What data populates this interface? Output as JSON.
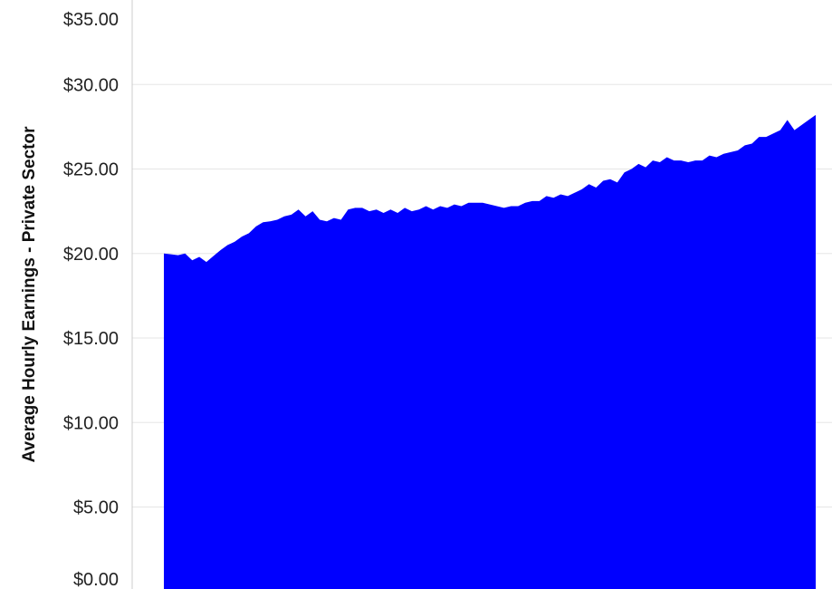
{
  "chart_data": {
    "type": "area",
    "title": "",
    "xlabel": "",
    "ylabel": "Average Hourly Earnings - Private Sector",
    "ylim": [
      0,
      35
    ],
    "y_ticks": [
      "$35.00",
      "$30.00",
      "$25.00",
      "$20.00",
      "$15.00",
      "$10.00",
      "$5.00",
      "$0.00"
    ],
    "y_tick_values": [
      35,
      30,
      25,
      20,
      15,
      10,
      5,
      0
    ],
    "grid": true,
    "colors": {
      "area": "#0000ff",
      "grid": "#e6e6e6",
      "axis": "#cccccc"
    },
    "series": [
      {
        "values": [
          20.0,
          19.95,
          19.9,
          20.0,
          19.6,
          19.8,
          19.5,
          19.85,
          20.2,
          20.5,
          20.7,
          21.0,
          21.2,
          21.6,
          21.85,
          21.9,
          22.0,
          22.2,
          22.3,
          22.6,
          22.2,
          22.5,
          22.0,
          21.9,
          22.1,
          22.0,
          22.6,
          22.7,
          22.7,
          22.5,
          22.6,
          22.4,
          22.6,
          22.4,
          22.7,
          22.5,
          22.6,
          22.8,
          22.6,
          22.8,
          22.7,
          22.9,
          22.8,
          23.0,
          23.0,
          23.0,
          22.9,
          22.8,
          22.7,
          22.8,
          22.8,
          23.0,
          23.1,
          23.1,
          23.4,
          23.3,
          23.5,
          23.4,
          23.6,
          23.8,
          24.1,
          23.9,
          24.3,
          24.4,
          24.2,
          24.8,
          25.0,
          25.3,
          25.1,
          25.5,
          25.4,
          25.7,
          25.5,
          25.5,
          25.4,
          25.5,
          25.5,
          25.8,
          25.7,
          25.9,
          26.0,
          26.1,
          26.4,
          26.5,
          26.9,
          26.9,
          27.1,
          27.3,
          27.9,
          27.3,
          27.6,
          27.9,
          28.2
        ]
      }
    ]
  }
}
